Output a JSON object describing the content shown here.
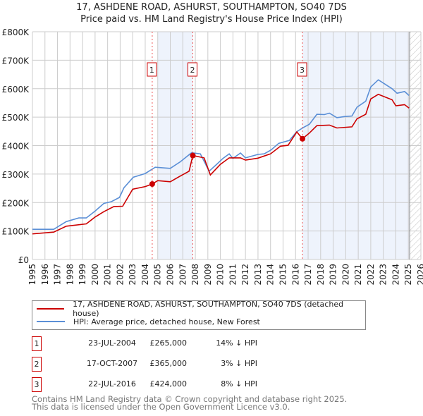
{
  "title": "17, ASHDENE ROAD, ASHURST, SOUTHAMPTON, SO40 7DS",
  "subtitle": "Price paid vs. HM Land Registry's House Price Index (HPI)",
  "colors": {
    "property": "#cc0000",
    "hpi": "#5b8fd6",
    "shade": "#eef3fc",
    "grid": "#cccccc"
  },
  "chart_data": {
    "type": "line",
    "xlim": [
      1995,
      2026
    ],
    "ylim": [
      0,
      800000
    ],
    "y_ticks": [
      0,
      100000,
      200000,
      300000,
      400000,
      500000,
      600000,
      700000,
      800000
    ],
    "y_tick_labels": [
      "£0",
      "£100K",
      "£200K",
      "£300K",
      "£400K",
      "£500K",
      "£600K",
      "£700K",
      "£800K"
    ],
    "x_ticks": [
      1995,
      1996,
      1997,
      1998,
      1999,
      2000,
      2001,
      2002,
      2003,
      2004,
      2005,
      2006,
      2007,
      2008,
      2009,
      2010,
      2011,
      2012,
      2013,
      2014,
      2015,
      2016,
      2017,
      2018,
      2019,
      2020,
      2021,
      2022,
      2023,
      2024,
      2025,
      2026
    ],
    "x_tick_labels": [
      "1995",
      "1996",
      "1997",
      "1998",
      "1999",
      "2000",
      "2001",
      "2002",
      "2003",
      "2004",
      "2005",
      "2006",
      "2007",
      "2008",
      "2009",
      "2010",
      "2011",
      "2012",
      "2013",
      "2014",
      "2015",
      "2016",
      "2017",
      "2018",
      "2019",
      "2020",
      "2021",
      "2022",
      "2023",
      "2024",
      "2025",
      "2026"
    ],
    "grid": true,
    "shaded_ranges": [
      [
        2005.0,
        2007.8
      ],
      [
        2016.55,
        2025.1
      ]
    ],
    "forecast_hatch_from": 2025.1,
    "series": [
      {
        "name": "17, ASHDENE ROAD, ASHURST, SOUTHAMPTON, SO40 7DS (detached house)",
        "color": "#cc0000",
        "x": [
          1995.0,
          1996.7,
          1997.7,
          1999.3,
          2000.0,
          2000.7,
          2001.5,
          2002.2,
          2003.0,
          2004.0,
          2004.56,
          2005.0,
          2006.0,
          2006.8,
          2007.5,
          2007.8,
          2008.7,
          2009.2,
          2010.0,
          2010.7,
          2011.6,
          2012.0,
          2013.0,
          2014.0,
          2014.8,
          2015.4,
          2016.1,
          2016.55,
          2017.1,
          2017.7,
          2018.7,
          2019.3,
          2020.5,
          2020.9,
          2021.6,
          2022.0,
          2022.6,
          2023.7,
          2024.0,
          2024.7,
          2025.05
        ],
        "y": [
          90000,
          96000,
          117000,
          125000,
          149000,
          168000,
          186000,
          187000,
          247000,
          256000,
          265000,
          277000,
          273000,
          293000,
          310000,
          365000,
          357000,
          297000,
          334000,
          357000,
          357000,
          349000,
          356000,
          371000,
          398000,
          401000,
          448000,
          424000,
          444000,
          470000,
          472000,
          462000,
          466000,
          494000,
          510000,
          564000,
          580000,
          561000,
          540000,
          544000,
          532000
        ]
      },
      {
        "name": "HPI: Average price, detached house, New Forest",
        "color": "#5b8fd6",
        "x": [
          1995.0,
          1996.7,
          1997.7,
          1998.7,
          1999.3,
          2000.0,
          2000.7,
          2001.3,
          2001.95,
          2002.3,
          2003.05,
          2004.0,
          2004.8,
          2006.0,
          2006.8,
          2007.7,
          2008.4,
          2009.1,
          2009.7,
          2010.2,
          2010.7,
          2011.0,
          2011.6,
          2012.0,
          2013.0,
          2013.5,
          2014.05,
          2014.65,
          2015.5,
          2016.1,
          2016.6,
          2017.1,
          2017.7,
          2018.3,
          2018.7,
          2019.3,
          2019.9,
          2020.5,
          2020.9,
          2021.6,
          2022.0,
          2022.6,
          2023.1,
          2023.7,
          2024.1,
          2024.7,
          2025.05
        ],
        "y": [
          106000,
          106000,
          133000,
          146000,
          146000,
          170000,
          197000,
          203000,
          218000,
          252000,
          289000,
          302000,
          324000,
          320000,
          343000,
          375000,
          371000,
          310000,
          334000,
          355000,
          371000,
          355000,
          374000,
          357000,
          369000,
          371000,
          385000,
          408000,
          418000,
          449000,
          463000,
          475000,
          510000,
          509000,
          514000,
          498000,
          502000,
          504000,
          535000,
          556000,
          606000,
          631000,
          617000,
          600000,
          584000,
          590000,
          576000
        ]
      }
    ],
    "sales": [
      {
        "label": "1",
        "x": 2004.56,
        "y": 265000
      },
      {
        "label": "2",
        "x": 2007.8,
        "y": 365000
      },
      {
        "label": "3",
        "x": 2016.55,
        "y": 424000
      }
    ]
  },
  "legend": {
    "property": "17, ASHDENE ROAD, ASHURST, SOUTHAMPTON, SO40 7DS (detached house)",
    "hpi": "HPI: Average price, detached house, New Forest"
  },
  "sales_table": [
    {
      "num": "1",
      "date": "23-JUL-2004",
      "price": "£265,000",
      "hpi": "14% ↓ HPI"
    },
    {
      "num": "2",
      "date": "17-OCT-2007",
      "price": "£365,000",
      "hpi": "3% ↓ HPI"
    },
    {
      "num": "3",
      "date": "22-JUL-2016",
      "price": "£424,000",
      "hpi": "8% ↓ HPI"
    }
  ],
  "footer": {
    "line1": "Contains HM Land Registry data © Crown copyright and database right 2025.",
    "line2": "This data is licensed under the Open Government Licence v3.0."
  }
}
